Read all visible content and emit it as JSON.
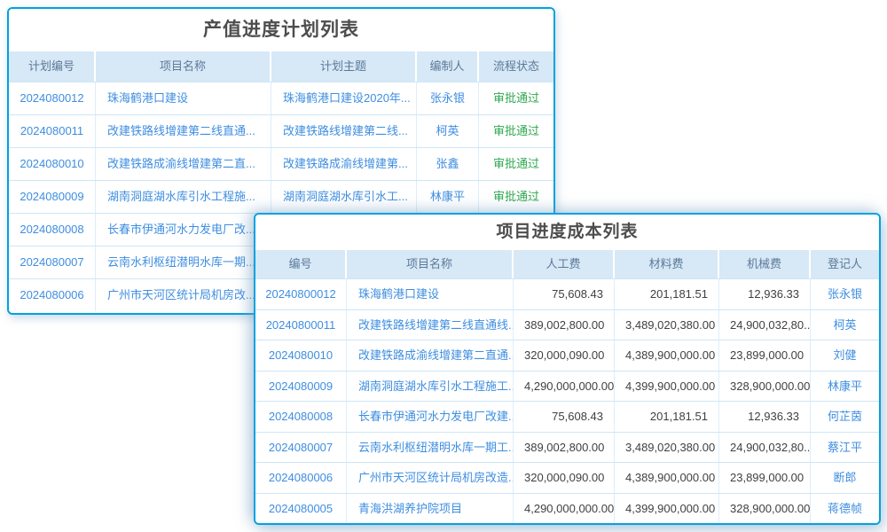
{
  "colors": {
    "panel_border": "#00a2e0",
    "header_bg": "#d7e8f6",
    "header_text": "#5b7a99",
    "link_blue": "#3e8ee0",
    "status_green": "#2fa84f",
    "title_text": "#4d4d4d",
    "number_text": "#404040"
  },
  "plan_table": {
    "title": "产值进度计划列表",
    "columns": [
      "计划编号",
      "项目名称",
      "计划主题",
      "编制人",
      "流程状态"
    ],
    "rows": [
      {
        "id": "2024080012",
        "name": "珠海鹤港口建设",
        "theme": "珠海鹤港口建设2020年...",
        "compiler": "张永银",
        "status": "审批通过"
      },
      {
        "id": "2024080011",
        "name": "改建铁路线增建第二线直通...",
        "theme": "改建铁路线增建第二线...",
        "compiler": "柯英",
        "status": "审批通过"
      },
      {
        "id": "2024080010",
        "name": "改建铁路成渝线增建第二直...",
        "theme": "改建铁路成渝线增建第...",
        "compiler": "张鑫",
        "status": "审批通过"
      },
      {
        "id": "2024080009",
        "name": "湖南洞庭湖水库引水工程施...",
        "theme": "湖南洞庭湖水库引水工...",
        "compiler": "林康平",
        "status": "审批通过"
      },
      {
        "id": "2024080008",
        "name": "长春市伊通河水力发电厂改...",
        "theme": "",
        "compiler": "",
        "status": ""
      },
      {
        "id": "2024080007",
        "name": "云南水利枢纽潜明水库一期...",
        "theme": "",
        "compiler": "",
        "status": ""
      },
      {
        "id": "2024080006",
        "name": "广州市天河区统计局机房改...",
        "theme": "",
        "compiler": "",
        "status": ""
      }
    ]
  },
  "cost_table": {
    "title": "项目进度成本列表",
    "columns": [
      "编号",
      "项目名称",
      "人工费",
      "材料费",
      "机械费",
      "登记人"
    ],
    "rows": [
      {
        "id": "20240800012",
        "name": "珠海鹤港口建设",
        "labor": "75,608.43",
        "material": "201,181.51",
        "machine": "12,936.33",
        "registrant": "张永银"
      },
      {
        "id": "20240800011",
        "name": "改建铁路线增建第二线直通线...",
        "labor": "389,002,800.00",
        "material": "3,489,020,380.00",
        "machine": "24,900,032,80...",
        "registrant": "柯英"
      },
      {
        "id": "2024080010",
        "name": "改建铁路成渝线增建第二直通...",
        "labor": "320,000,090.00",
        "material": "4,389,900,000.00",
        "machine": "23,899,000.00",
        "registrant": "刘健"
      },
      {
        "id": "2024080009",
        "name": "湖南洞庭湖水库引水工程施工...",
        "labor": "4,290,000,000.00",
        "material": "4,399,900,000.00",
        "machine": "328,900,000.00",
        "registrant": "林康平"
      },
      {
        "id": "2024080008",
        "name": "长春市伊通河水力发电厂改建...",
        "labor": "75,608.43",
        "material": "201,181.51",
        "machine": "12,936.33",
        "registrant": "何芷茵"
      },
      {
        "id": "2024080007",
        "name": "云南水利枢纽潜明水库一期工...",
        "labor": "389,002,800.00",
        "material": "3,489,020,380.00",
        "machine": "24,900,032,80...",
        "registrant": "蔡江平"
      },
      {
        "id": "2024080006",
        "name": "广州市天河区统计局机房改造...",
        "labor": "320,000,090.00",
        "material": "4,389,900,000.00",
        "machine": "23,899,000.00",
        "registrant": "断郎"
      },
      {
        "id": "2024080005",
        "name": "青海洪湖养护院项目",
        "labor": "4,290,000,000.00",
        "material": "4,399,900,000.00",
        "machine": "328,900,000.00",
        "registrant": "蒋德帧"
      }
    ]
  }
}
